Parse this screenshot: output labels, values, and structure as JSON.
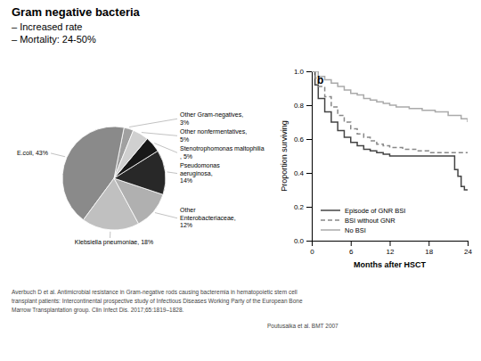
{
  "chart_data": [
    {
      "type": "pie",
      "title": "Gram negative bacteria",
      "subtitle": [
        "– Increased rate",
        "– Mortality: 24-50%"
      ],
      "categories": [
        "Other Gram-negatives,\n3%",
        "E.coli, 43%",
        "Klebsiella pneumoniae, 18%",
        "Other\nEnterobacteriaceae,\n12%",
        "Pseudomonas\naeruginosa,\n14%",
        "Stenotrophomonas maltophilia\n, 5%",
        "Other nonfermentatives,\n5%"
      ],
      "values": [
        3,
        43,
        18,
        12,
        14,
        5,
        5
      ],
      "colors": [
        "#a0a0a0",
        "#8a8a8a",
        "#c0c0c0",
        "#b0b0b0",
        "#282828",
        "#181818",
        "#d0d0d0"
      ],
      "annotations": [
        "Averbuch D et al. Antimicrobial resistance in Gram-negative rods causing bacteremia in hematopoietic stem cell",
        "transplant patients: Intercontinental prospective study of Infectious Diseases Working Party of the European Bone",
        "Marrow Transplantation group. Clin Infect Dis. 2017;65:1819–1828."
      ]
    },
    {
      "type": "step",
      "title": "b",
      "x_label": "Months after HSCT",
      "y_label": "Proportion surviving",
      "xlim": [
        0,
        24
      ],
      "ylim": [
        0,
        1
      ],
      "xticks": [
        0,
        6,
        12,
        18,
        24
      ],
      "yticks": [
        {
          "value": 0,
          "label": "0.0"
        },
        0.2,
        0.4,
        0.6,
        0.8,
        {
          "value": 1,
          "label": "1.0"
        }
      ],
      "grid": false,
      "legend": "lower left",
      "series": [
        {
          "name": "Episode of GNR BSI",
          "color": "#444444",
          "line_style": "solid",
          "x": [
            0,
            0.5,
            1,
            2,
            3,
            4,
            5,
            6,
            7,
            8,
            9,
            10,
            11,
            12,
            13,
            14,
            15,
            16,
            17,
            18,
            19,
            20,
            21,
            22,
            22.5,
            23,
            23.5,
            24
          ],
          "values": [
            1.0,
            0.92,
            0.84,
            0.76,
            0.7,
            0.65,
            0.61,
            0.58,
            0.56,
            0.54,
            0.53,
            0.52,
            0.51,
            0.5,
            0.5,
            0.5,
            0.5,
            0.5,
            0.5,
            0.5,
            0.5,
            0.5,
            0.5,
            0.42,
            0.38,
            0.32,
            0.3,
            0.3
          ]
        },
        {
          "name": "BSI without GNR",
          "color": "#888888",
          "line_style": "dashed",
          "x": [
            0,
            0.5,
            1,
            2,
            3,
            4,
            5,
            6,
            7,
            8,
            9,
            10,
            11,
            12,
            14,
            16,
            18,
            19,
            21,
            23,
            24
          ],
          "values": [
            1.0,
            0.96,
            0.91,
            0.85,
            0.79,
            0.74,
            0.7,
            0.66,
            0.63,
            0.61,
            0.59,
            0.57,
            0.56,
            0.55,
            0.54,
            0.53,
            0.52,
            0.52,
            0.52,
            0.52,
            0.52
          ]
        },
        {
          "name": "No BSI",
          "color": "#aaaaaa",
          "line_style": "solid",
          "x": [
            0,
            1,
            2,
            3,
            4,
            5,
            6,
            7,
            8,
            9,
            10,
            11,
            12,
            13,
            15,
            17,
            19,
            21,
            23,
            24
          ],
          "values": [
            1.0,
            0.97,
            0.95,
            0.93,
            0.91,
            0.89,
            0.87,
            0.86,
            0.84,
            0.83,
            0.82,
            0.81,
            0.8,
            0.79,
            0.78,
            0.77,
            0.76,
            0.74,
            0.72,
            0.7
          ]
        }
      ],
      "annotations": [
        "Poutusaika et al. BMT 2007"
      ]
    }
  ]
}
